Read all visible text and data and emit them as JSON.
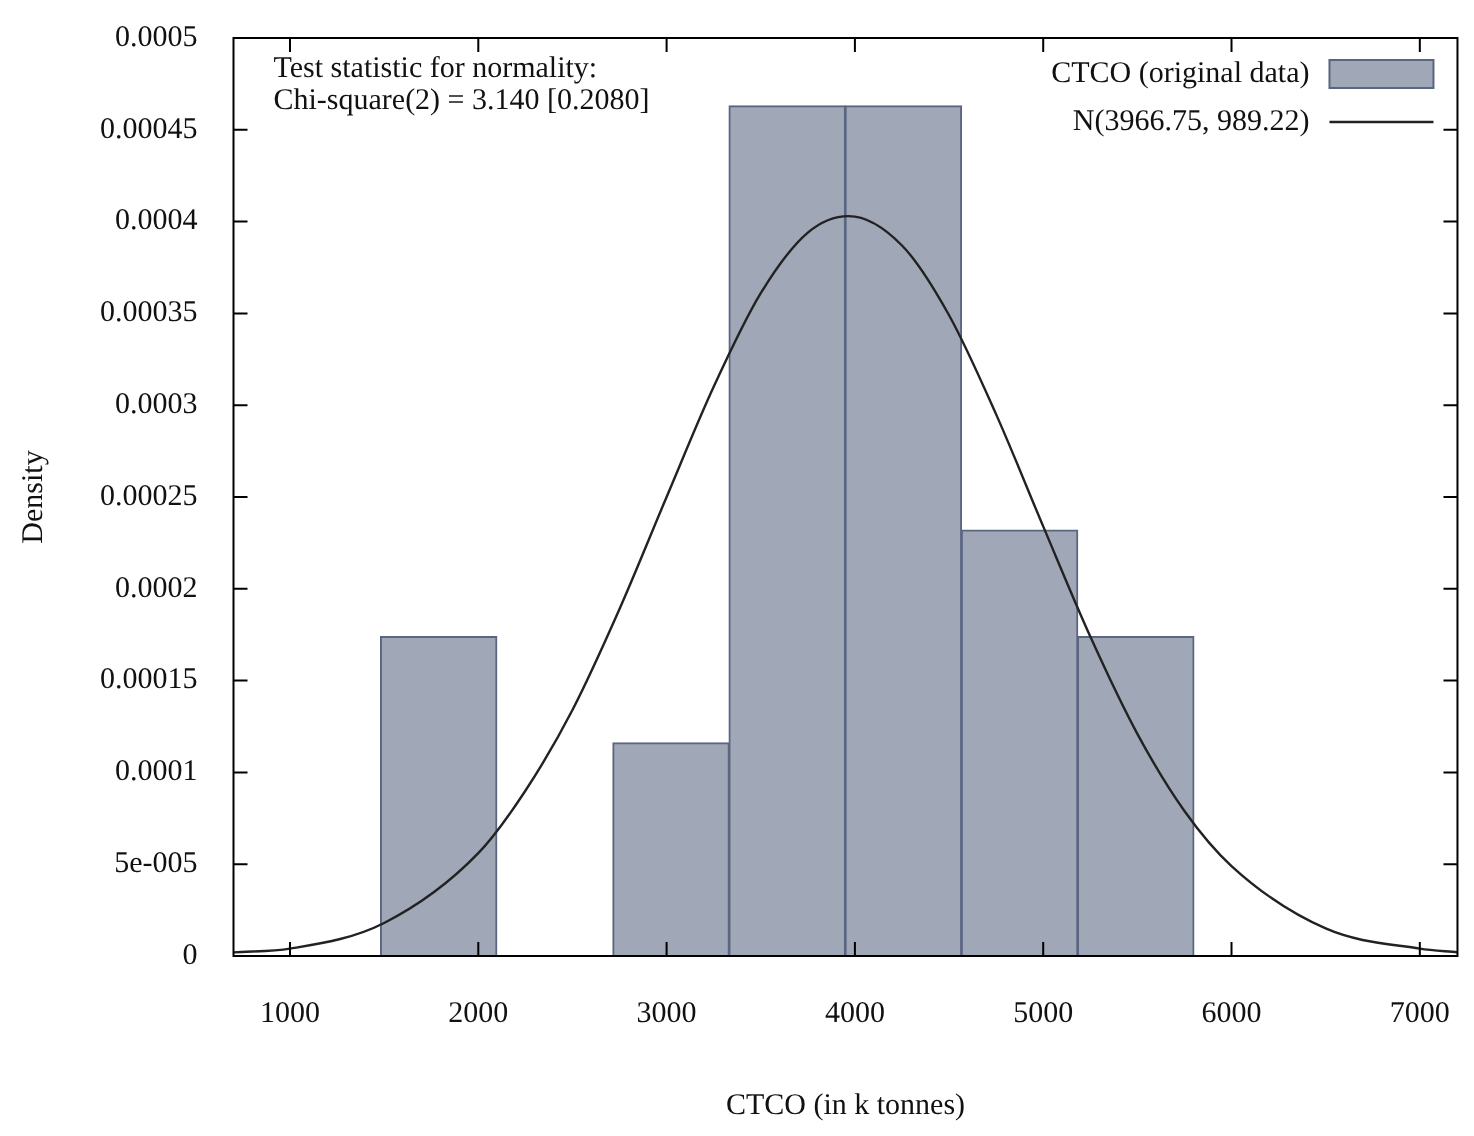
{
  "chart_data": {
    "type": "histogram",
    "xlabel": "CTCO (in k tonnes)",
    "ylabel": "Density",
    "annotations": [
      "Test statistic for normality:",
      "Chi-square(2) = 3.140 [0.2080]"
    ],
    "xlim": [
      700,
      7200
    ],
    "xticks": [
      1000,
      2000,
      3000,
      4000,
      5000,
      6000,
      7000
    ],
    "ylim": [
      0,
      0.0005
    ],
    "yticks": [
      0,
      {
        "value": 5e-05,
        "label": "5e-005"
      },
      0.0001,
      0.00015,
      0.0002,
      0.00025,
      0.0003,
      0.00035,
      0.0004,
      0.00045,
      0.0005
    ],
    "grid": false,
    "legend": "top right",
    "series": [
      {
        "name": "CTCO (original data)",
        "color": "#a0a7b7",
        "bins": [
          1481,
          2098,
          2715,
          3332,
          3949,
          4566,
          5183,
          5800
        ],
        "values": [
          0.000174,
          0,
          0.000116,
          0.000463,
          0.000463,
          0.000232,
          0.000174
        ]
      },
      {
        "name": "N(3966.75, 989.22)",
        "type": "line",
        "color": "#222222",
        "x": [
          700,
          1000,
          1500,
          2000,
          2250,
          2500,
          2750,
          3000,
          3250,
          3500,
          3750,
          3966.75,
          4250,
          4500,
          4750,
          5000,
          5250,
          5500,
          5750,
          6000,
          6500,
          7000,
          7200
        ],
        "values": [
          2e-06,
          4e-06,
          1.8e-05,
          5.6e-05,
          9e-05,
          0.000134,
          0.000189,
          0.00025,
          0.00031,
          0.000361,
          0.000394,
          0.000403,
          0.000387,
          0.000349,
          0.000295,
          0.000234,
          0.000174,
          0.000121,
          7.9e-05,
          4.9e-05,
          1.5e-05,
          4e-06,
          2e-06
        ]
      }
    ]
  }
}
